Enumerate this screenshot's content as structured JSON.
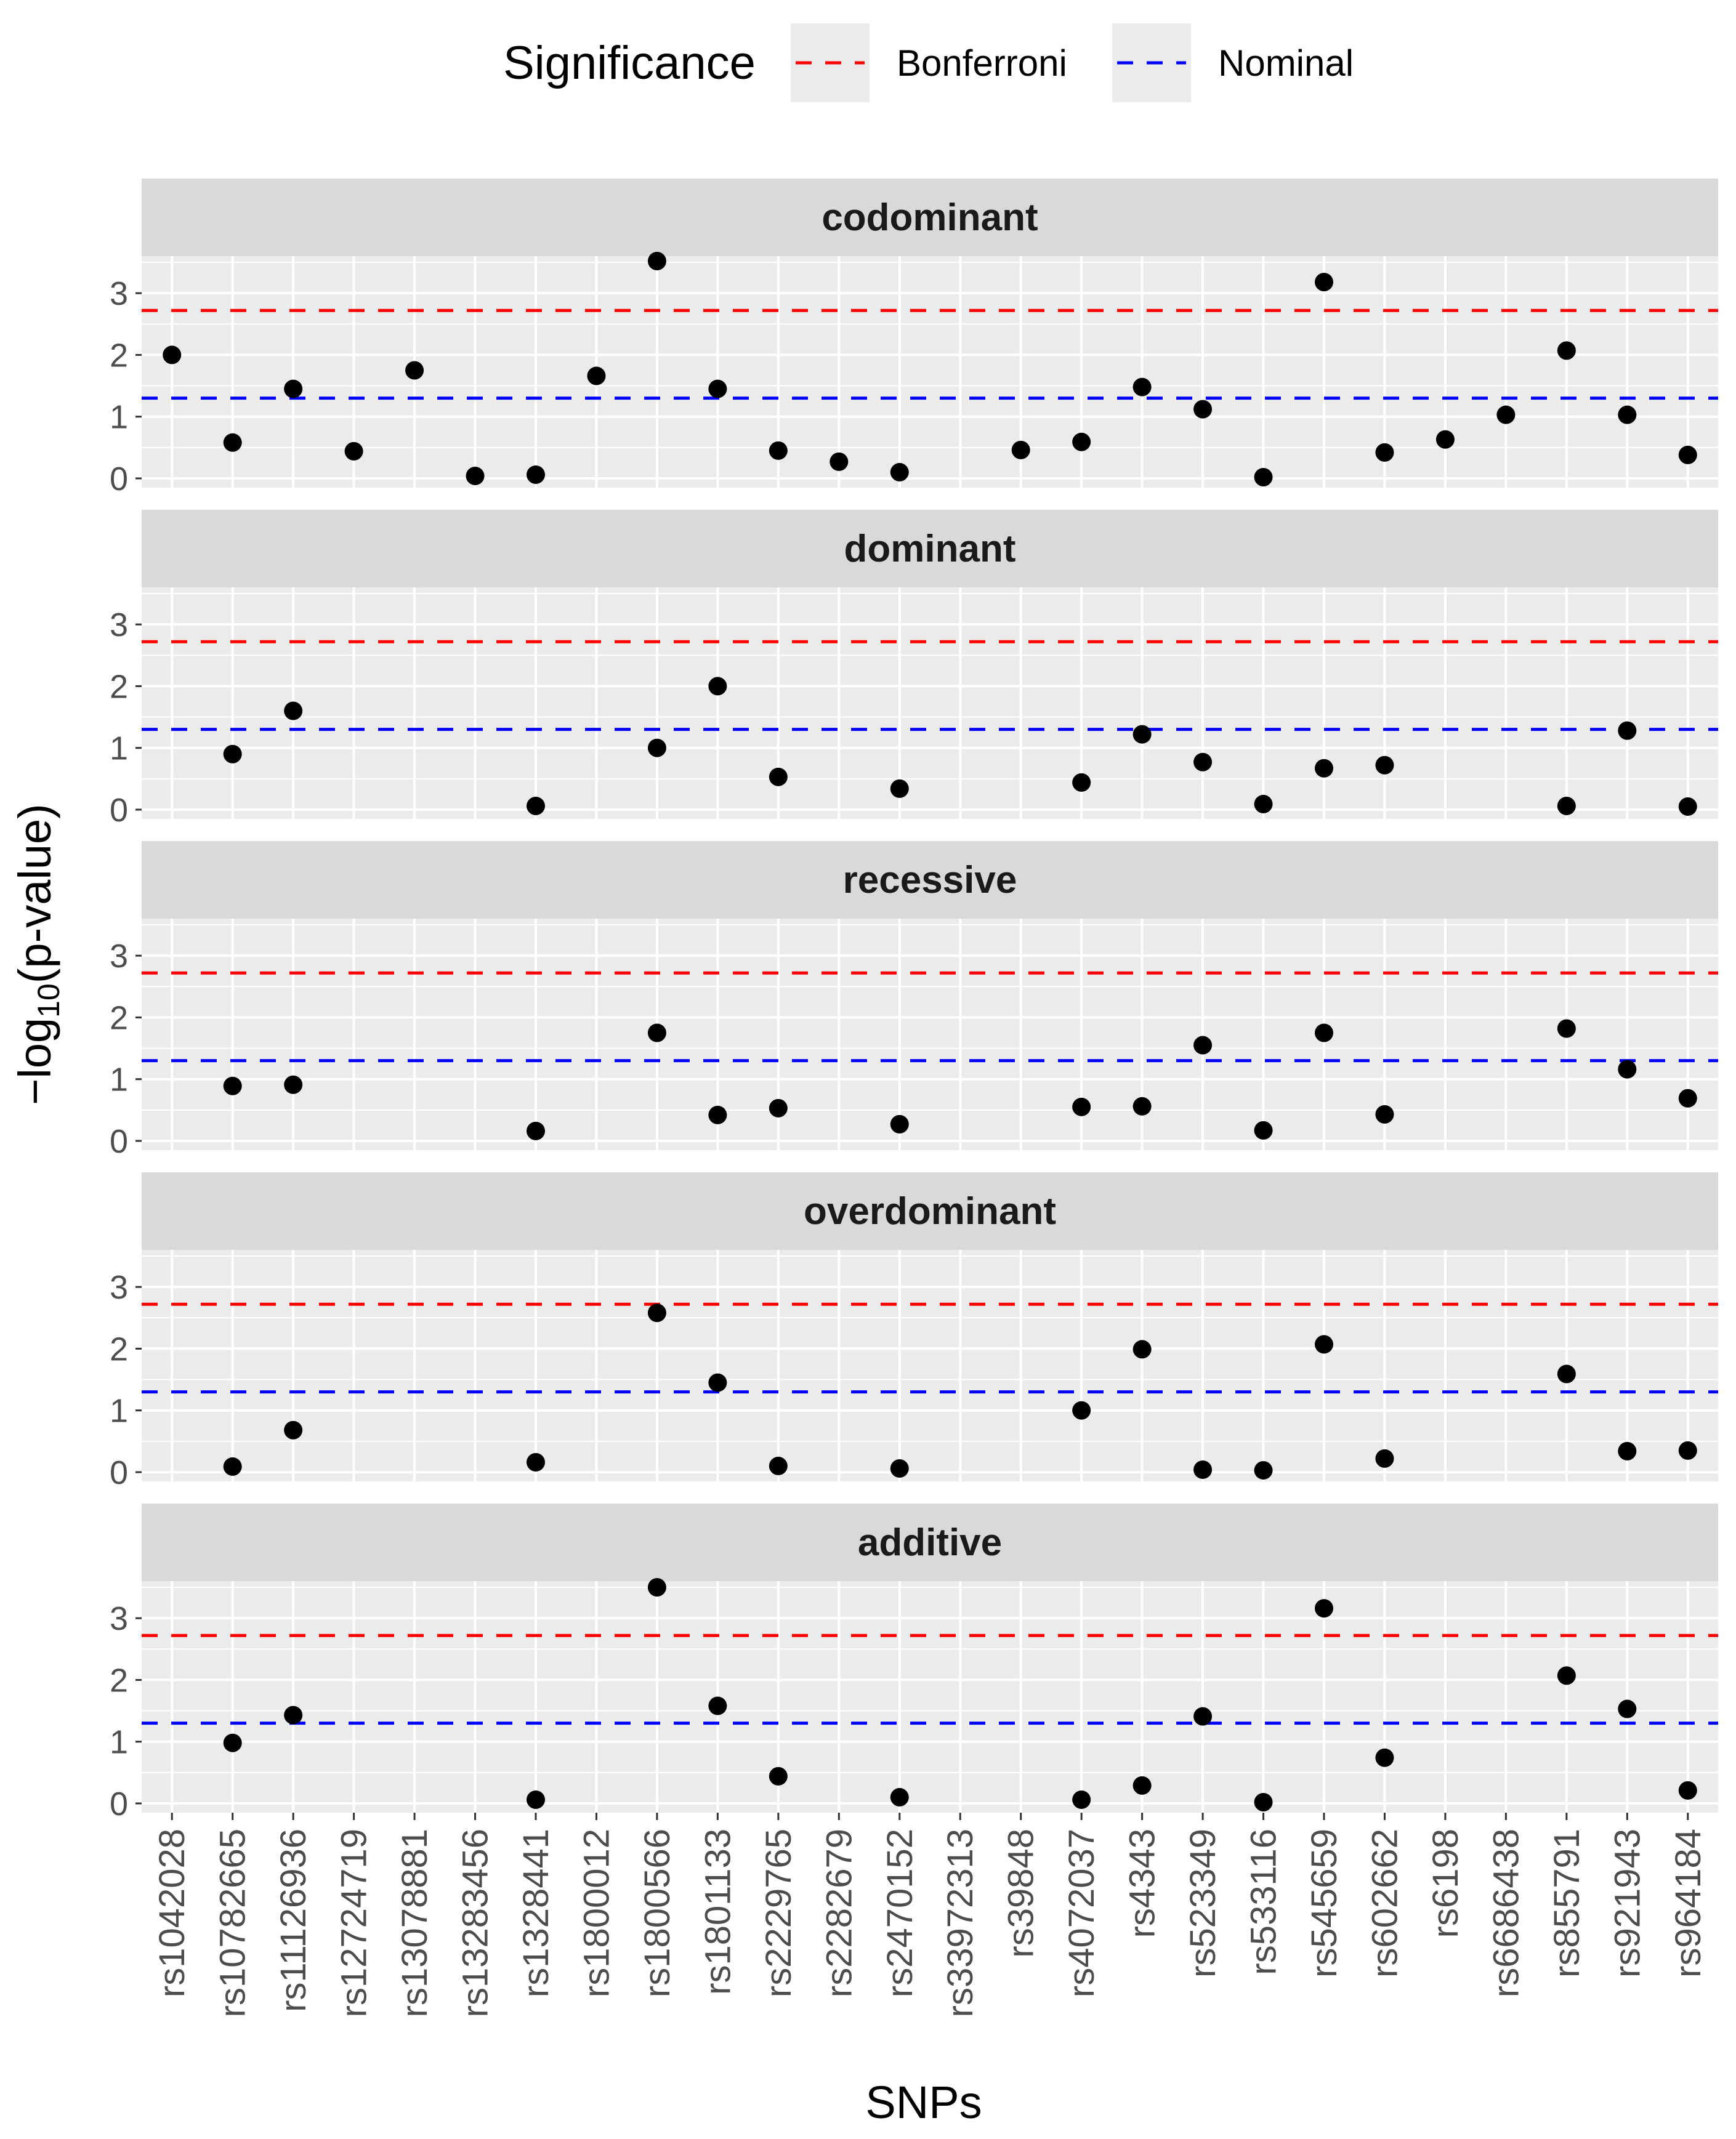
{
  "chart_data": {
    "type": "scatter",
    "xlabel": "SNPs",
    "ylabel_parts": [
      "−log",
      "10",
      "(p-value)"
    ],
    "ylim": [
      -0.15,
      3.6
    ],
    "y_ticks": [
      0,
      1,
      2,
      3
    ],
    "categories": [
      "rs1042028",
      "rs10782665",
      "rs11126936",
      "rs12724719",
      "rs13078881",
      "rs13283456",
      "rs1328441",
      "rs1800012",
      "rs1800566",
      "rs1801133",
      "rs2229765",
      "rs2282679",
      "rs2470152",
      "rs33972313",
      "rs39848",
      "rs4072037",
      "rs4343",
      "rs523349",
      "rs533116",
      "rs545659",
      "rs602662",
      "rs6198",
      "rs6686438",
      "rs855791",
      "rs921943",
      "rs964184"
    ],
    "legend": {
      "title": "Significance",
      "entries": [
        {
          "label": "Bonferroni",
          "color": "#ff0000",
          "value": 2.72
        },
        {
          "label": "Nominal",
          "color": "#0000ff",
          "value": 1.3
        }
      ]
    },
    "colors": {
      "point": "#000000",
      "panel_bg": "#ebebeb",
      "strip_bg": "#d9d9d9",
      "grid": "#ffffff"
    },
    "panels": [
      {
        "name": "codominant",
        "points": [
          {
            "snp": "rs1042028",
            "y": 2.0
          },
          {
            "snp": "rs10782665",
            "y": 0.58
          },
          {
            "snp": "rs11126936",
            "y": 1.45
          },
          {
            "snp": "rs12724719",
            "y": 0.44
          },
          {
            "snp": "rs13078881",
            "y": 1.75
          },
          {
            "snp": "rs13283456",
            "y": 0.04
          },
          {
            "snp": "rs1328441",
            "y": 0.06
          },
          {
            "snp": "rs1800012",
            "y": 1.66
          },
          {
            "snp": "rs1800566",
            "y": 3.52
          },
          {
            "snp": "rs1801133",
            "y": 1.45
          },
          {
            "snp": "rs2229765",
            "y": 0.45
          },
          {
            "snp": "rs2282679",
            "y": 0.27
          },
          {
            "snp": "rs2470152",
            "y": 0.1
          },
          {
            "snp": "rs39848",
            "y": 0.46
          },
          {
            "snp": "rs4072037",
            "y": 0.59
          },
          {
            "snp": "rs4343",
            "y": 1.48
          },
          {
            "snp": "rs523349",
            "y": 1.12
          },
          {
            "snp": "rs533116",
            "y": 0.02
          },
          {
            "snp": "rs545659",
            "y": 3.18
          },
          {
            "snp": "rs602662",
            "y": 0.42
          },
          {
            "snp": "rs6198",
            "y": 0.63
          },
          {
            "snp": "rs6686438",
            "y": 1.03
          },
          {
            "snp": "rs855791",
            "y": 2.07
          },
          {
            "snp": "rs921943",
            "y": 1.03
          },
          {
            "snp": "rs964184",
            "y": 0.38
          }
        ]
      },
      {
        "name": "dominant",
        "points": [
          {
            "snp": "rs10782665",
            "y": 0.9
          },
          {
            "snp": "rs11126936",
            "y": 1.6
          },
          {
            "snp": "rs1328441",
            "y": 0.06
          },
          {
            "snp": "rs1800566",
            "y": 1.0
          },
          {
            "snp": "rs1801133",
            "y": 2.0
          },
          {
            "snp": "rs2229765",
            "y": 0.53
          },
          {
            "snp": "rs2470152",
            "y": 0.34
          },
          {
            "snp": "rs4072037",
            "y": 0.44
          },
          {
            "snp": "rs4343",
            "y": 1.22
          },
          {
            "snp": "rs523349",
            "y": 0.77
          },
          {
            "snp": "rs533116",
            "y": 0.09
          },
          {
            "snp": "rs545659",
            "y": 0.67
          },
          {
            "snp": "rs602662",
            "y": 0.72
          },
          {
            "snp": "rs855791",
            "y": 0.06
          },
          {
            "snp": "rs921943",
            "y": 1.28
          },
          {
            "snp": "rs964184",
            "y": 0.05
          }
        ]
      },
      {
        "name": "recessive",
        "points": [
          {
            "snp": "rs10782665",
            "y": 0.89
          },
          {
            "snp": "rs11126936",
            "y": 0.91
          },
          {
            "snp": "rs1328441",
            "y": 0.16
          },
          {
            "snp": "rs1800566",
            "y": 1.75
          },
          {
            "snp": "rs1801133",
            "y": 0.42
          },
          {
            "snp": "rs2229765",
            "y": 0.53
          },
          {
            "snp": "rs2470152",
            "y": 0.27
          },
          {
            "snp": "rs4072037",
            "y": 0.55
          },
          {
            "snp": "rs4343",
            "y": 0.56
          },
          {
            "snp": "rs523349",
            "y": 1.55
          },
          {
            "snp": "rs533116",
            "y": 0.17
          },
          {
            "snp": "rs545659",
            "y": 1.75
          },
          {
            "snp": "rs602662",
            "y": 0.43
          },
          {
            "snp": "rs855791",
            "y": 1.82
          },
          {
            "snp": "rs921943",
            "y": 1.16
          },
          {
            "snp": "rs964184",
            "y": 0.69
          }
        ]
      },
      {
        "name": "overdominant",
        "points": [
          {
            "snp": "rs10782665",
            "y": 0.09
          },
          {
            "snp": "rs11126936",
            "y": 0.68
          },
          {
            "snp": "rs1328441",
            "y": 0.16
          },
          {
            "snp": "rs1800566",
            "y": 2.58
          },
          {
            "snp": "rs1801133",
            "y": 1.45
          },
          {
            "snp": "rs2229765",
            "y": 0.1
          },
          {
            "snp": "rs2470152",
            "y": 0.06
          },
          {
            "snp": "rs4072037",
            "y": 1.0
          },
          {
            "snp": "rs4343",
            "y": 1.99
          },
          {
            "snp": "rs523349",
            "y": 0.04
          },
          {
            "snp": "rs533116",
            "y": 0.03
          },
          {
            "snp": "rs545659",
            "y": 2.07
          },
          {
            "snp": "rs602662",
            "y": 0.22
          },
          {
            "snp": "rs855791",
            "y": 1.59
          },
          {
            "snp": "rs921943",
            "y": 0.34
          },
          {
            "snp": "rs964184",
            "y": 0.35
          }
        ]
      },
      {
        "name": "additive",
        "points": [
          {
            "snp": "rs10782665",
            "y": 0.98
          },
          {
            "snp": "rs11126936",
            "y": 1.43
          },
          {
            "snp": "rs1328441",
            "y": 0.06
          },
          {
            "snp": "rs1800566",
            "y": 3.5
          },
          {
            "snp": "rs1801133",
            "y": 1.58
          },
          {
            "snp": "rs2229765",
            "y": 0.44
          },
          {
            "snp": "rs2470152",
            "y": 0.1
          },
          {
            "snp": "rs4072037",
            "y": 0.06
          },
          {
            "snp": "rs4343",
            "y": 0.29
          },
          {
            "snp": "rs523349",
            "y": 1.41
          },
          {
            "snp": "rs533116",
            "y": 0.02
          },
          {
            "snp": "rs545659",
            "y": 3.16
          },
          {
            "snp": "rs602662",
            "y": 0.74
          },
          {
            "snp": "rs855791",
            "y": 2.07
          },
          {
            "snp": "rs921943",
            "y": 1.53
          },
          {
            "snp": "rs964184",
            "y": 0.21
          }
        ]
      }
    ]
  }
}
